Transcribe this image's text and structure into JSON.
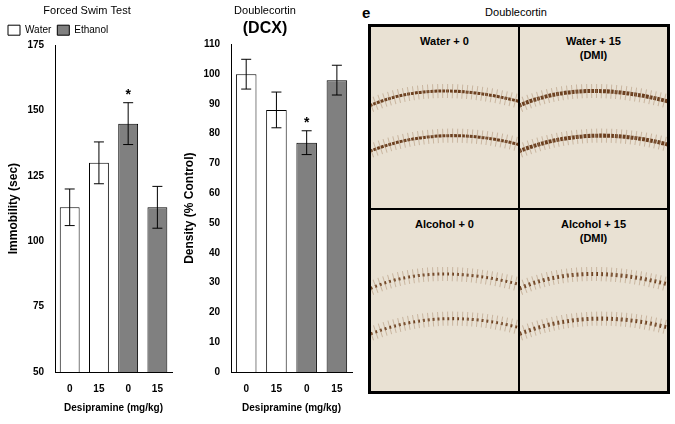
{
  "chart_data": [
    {
      "type": "bar",
      "title": "Forced Swim Test",
      "x_label": "Desipramine (mg/kg)",
      "y_label": "Immobility (sec)",
      "categories": [
        "0",
        "15",
        "0",
        "15"
      ],
      "series": [
        {
          "name": "Water",
          "color": "#ffffff",
          "values": [
            113,
            130,
            null,
            null
          ],
          "errors": [
            7,
            8,
            null,
            null
          ]
        },
        {
          "name": "Ethanol",
          "color": "#808080",
          "values": [
            null,
            null,
            145,
            113
          ],
          "errors": [
            null,
            null,
            8,
            8
          ]
        }
      ],
      "ylim": [
        50,
        175
      ],
      "yticks": [
        50,
        75,
        100,
        125,
        150,
        175
      ],
      "grid": false,
      "legend": "upper left",
      "annotations": [
        {
          "text": "*",
          "category": 2
        }
      ]
    },
    {
      "type": "bar",
      "title": "Doublecortin",
      "subtitle": "(DCX)",
      "x_label": "Desipramine (mg/kg)",
      "y_label": "Density (% Control)",
      "categories": [
        "0",
        "15",
        "0",
        "15"
      ],
      "series": [
        {
          "color": "#ffffff",
          "values": [
            100,
            88,
            null,
            null
          ],
          "errors": [
            5,
            6,
            null,
            null
          ]
        },
        {
          "color": "#808080",
          "values": [
            null,
            null,
            77,
            98
          ],
          "errors": [
            null,
            null,
            4,
            5
          ]
        }
      ],
      "ylim": [
        0,
        110
      ],
      "yticks": [
        0,
        10,
        20,
        30,
        40,
        50,
        60,
        70,
        80,
        90,
        100,
        110
      ],
      "grid": false,
      "annotations": [
        {
          "text": "*",
          "category": 2
        }
      ]
    }
  ],
  "image_panel": {
    "label": "e",
    "title": "Doublecortin",
    "quadrants": [
      {
        "text": "Water + 0"
      },
      {
        "text": "Water + 15",
        "note": "(DMI)"
      },
      {
        "text": "Alcohol + 0"
      },
      {
        "text": "Alcohol + 15",
        "note": "(DMI)"
      }
    ]
  }
}
